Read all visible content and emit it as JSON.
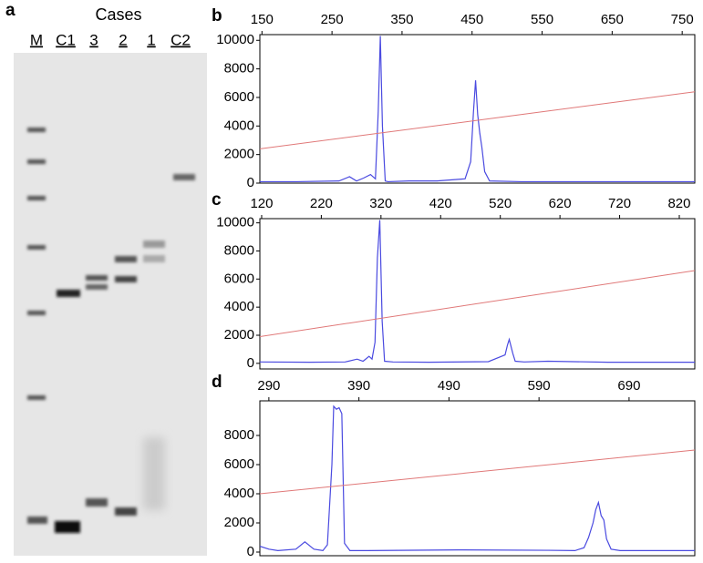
{
  "gel": {
    "panel": "a",
    "title": "Cases",
    "lanes": [
      "M",
      "C1",
      "3",
      "2",
      "1",
      "C2"
    ]
  },
  "chart_data": [
    {
      "type": "line",
      "panel": "b",
      "xlim": [
        147,
        768
      ],
      "xticks": [
        150,
        250,
        350,
        450,
        550,
        650,
        750
      ],
      "ylim": [
        0,
        10400
      ],
      "yticks": [
        0,
        2000,
        4000,
        6000,
        8000,
        10000
      ],
      "series": [
        {
          "color": "#4a4ae0",
          "x": [
            147,
            200,
            260,
            275,
            285,
            295,
            305,
            312,
            316,
            319,
            322,
            326,
            330,
            360,
            400,
            440,
            448,
            452,
            455,
            458,
            461,
            464,
            468,
            475,
            520,
            600,
            700,
            768
          ],
          "values": [
            100,
            100,
            150,
            450,
            150,
            350,
            600,
            300,
            5000,
            10300,
            4000,
            150,
            100,
            150,
            150,
            300,
            1500,
            5000,
            7200,
            4800,
            3500,
            2500,
            800,
            150,
            100,
            100,
            100,
            100
          ]
        },
        {
          "color": "#e07878",
          "x": [
            147,
            768
          ],
          "values": [
            2400,
            6400
          ]
        }
      ]
    },
    {
      "type": "line",
      "panel": "c",
      "xlim": [
        117,
        846
      ],
      "xticks": [
        120,
        220,
        320,
        420,
        520,
        620,
        720,
        820
      ],
      "ylim": [
        -400,
        10300
      ],
      "yticks": [
        0,
        2000,
        4000,
        6000,
        8000,
        10000
      ],
      "series": [
        {
          "color": "#4a4ae0",
          "x": [
            117,
            200,
            260,
            280,
            290,
            300,
            305,
            310,
            314,
            318,
            322,
            326,
            340,
            400,
            500,
            528,
            532,
            535,
            538,
            541,
            545,
            560,
            600,
            700,
            846
          ],
          "values": [
            100,
            80,
            100,
            300,
            150,
            500,
            300,
            1500,
            7500,
            10200,
            3000,
            150,
            100,
            80,
            120,
            600,
            1300,
            1700,
            1200,
            700,
            150,
            100,
            150,
            80,
            80
          ]
        },
        {
          "color": "#e07878",
          "x": [
            117,
            846
          ],
          "values": [
            1900,
            6600
          ]
        }
      ]
    },
    {
      "type": "line",
      "panel": "d",
      "xlim": [
        280,
        763
      ],
      "xticks": [
        290,
        390,
        490,
        590,
        690
      ],
      "ylim": [
        -250,
        10375
      ],
      "yticks": [
        0,
        2000,
        4000,
        6000,
        8000
      ],
      "series": [
        {
          "color": "#4a4ae0",
          "x": [
            280,
            290,
            300,
            320,
            330,
            340,
            350,
            355,
            360,
            362,
            365,
            368,
            371,
            374,
            380,
            400,
            500,
            600,
            630,
            640,
            645,
            650,
            653,
            656,
            659,
            662,
            665,
            670,
            680,
            763
          ],
          "values": [
            400,
            200,
            100,
            200,
            700,
            200,
            100,
            500,
            6000,
            10000,
            9800,
            9900,
            9500,
            600,
            100,
            100,
            150,
            120,
            100,
            300,
            1000,
            2000,
            2900,
            3400,
            2500,
            2200,
            900,
            200,
            100,
            100
          ]
        },
        {
          "color": "#e07878",
          "x": [
            280,
            763
          ],
          "values": [
            4000,
            7000
          ]
        }
      ]
    }
  ]
}
